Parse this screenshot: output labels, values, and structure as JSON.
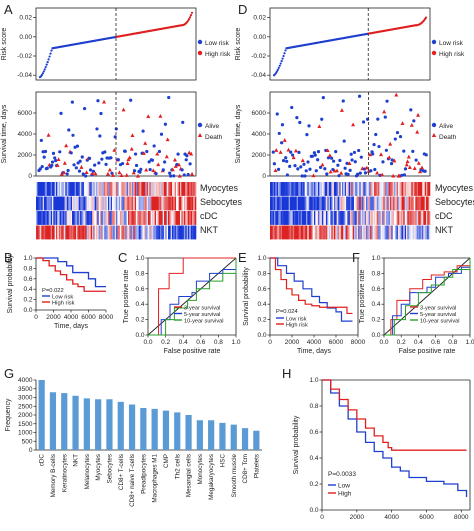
{
  "figure": {
    "panel_labels": [
      "A",
      "D",
      "B",
      "C",
      "E",
      "F",
      "G",
      "H"
    ],
    "heatmap_rows": [
      "Myocytes",
      "Sebocytes",
      "cDC",
      "NKT"
    ],
    "colors": {
      "low": "#1f3fcf",
      "high": "#e02020",
      "green": "#2aa02a",
      "gray": "#888888"
    }
  },
  "chart_data": [
    {
      "id": "A-risk",
      "type": "scatter",
      "panel": "A",
      "ylabel": "Risk score",
      "yticks": [
        "0.02",
        "0.00",
        "-0.02",
        "-0.04"
      ],
      "ylim": [
        -0.045,
        0.03
      ],
      "legend": [
        {
          "name": "Low risk",
          "color": "#1f3fcf"
        },
        {
          "name": "High risk",
          "color": "#e02020"
        }
      ],
      "cutoff_fraction": 0.5,
      "min": -0.042,
      "max": 0.025
    },
    {
      "id": "A-surv",
      "type": "scatter",
      "panel": "A",
      "ylabel": "Survival time, days",
      "yticks": [
        "6000",
        "4000",
        "2000",
        "0"
      ],
      "ylim": [
        0,
        8000
      ],
      "legend": [
        {
          "name": "Alive",
          "color": "#1f3fcf",
          "marker": "circle"
        },
        {
          "name": "Death",
          "color": "#e02020",
          "marker": "triangle"
        }
      ]
    },
    {
      "id": "D-risk",
      "type": "scatter",
      "panel": "D",
      "ylabel": "Risk score",
      "yticks": [
        "0.02",
        "0.00",
        "-0.02",
        "-0.04"
      ],
      "ylim": [
        -0.045,
        0.03
      ],
      "legend": [
        {
          "name": "Low risk",
          "color": "#1f3fcf"
        },
        {
          "name": "High risk",
          "color": "#e02020"
        }
      ],
      "cutoff_fraction": 0.62,
      "min": -0.04,
      "max": 0.02
    },
    {
      "id": "D-surv",
      "type": "scatter",
      "panel": "D",
      "ylabel": "Survival time, days",
      "yticks": [
        "6000",
        "4000",
        "2000",
        "0"
      ],
      "ylim": [
        0,
        8000
      ],
      "legend": [
        {
          "name": "Alive",
          "color": "#1f3fcf",
          "marker": "circle"
        },
        {
          "name": "Death",
          "color": "#e02020",
          "marker": "triangle"
        }
      ]
    },
    {
      "id": "B",
      "type": "line",
      "panel": "B",
      "xlabel": "Time, days",
      "ylabel": "Survival probability",
      "xticks": [
        "0",
        "2000",
        "4000",
        "6000",
        "8000"
      ],
      "yticks": [
        "1.0",
        "0.8",
        "0.6",
        "0.4",
        "0.2",
        "0.0"
      ],
      "xlim": [
        0,
        8000
      ],
      "ylim": [
        0,
        1
      ],
      "pvalue": "P=0.022",
      "series": [
        {
          "name": "Low risk",
          "color": "#1f3fcf",
          "x": [
            0,
            1500,
            2500,
            3500,
            4200,
            5000,
            6000,
            6800,
            8000
          ],
          "y": [
            1,
            1,
            0.93,
            0.85,
            0.72,
            0.72,
            0.6,
            0.45,
            0.45
          ]
        },
        {
          "name": "High risk",
          "color": "#e02020",
          "x": [
            0,
            800,
            1500,
            2200,
            2800,
            3500,
            4200,
            4800,
            5500,
            6500,
            8000
          ],
          "y": [
            1,
            0.95,
            0.85,
            0.75,
            0.68,
            0.58,
            0.5,
            0.45,
            0.36,
            0.36,
            0.36
          ]
        }
      ]
    },
    {
      "id": "C",
      "type": "line",
      "panel": "C",
      "xlabel": "False positive rate",
      "ylabel": "True positive rate",
      "xticks": [
        "0.0",
        "0.2",
        "0.4",
        "0.6",
        "0.8",
        "1.0"
      ],
      "yticks": [
        "1.0",
        "0.8",
        "0.6",
        "0.4",
        "0.2",
        "0.0"
      ],
      "xlim": [
        0,
        1
      ],
      "ylim": [
        0,
        1
      ],
      "series": [
        {
          "name": "3-year survival",
          "color": "#e02020",
          "x": [
            0,
            0.12,
            0.12,
            0.24,
            0.24,
            0.4,
            0.4,
            1
          ],
          "y": [
            0,
            0,
            0.6,
            0.6,
            0.8,
            0.8,
            1,
            1
          ]
        },
        {
          "name": "5-year survival",
          "color": "#1f3fcf",
          "x": [
            0,
            0.15,
            0.25,
            0.35,
            0.5,
            0.55,
            0.7,
            0.85,
            1
          ],
          "y": [
            0,
            0.2,
            0.4,
            0.5,
            0.55,
            0.7,
            0.8,
            0.85,
            1
          ]
        },
        {
          "name": "10-year survival",
          "color": "#2aa02a",
          "x": [
            0,
            0.2,
            0.3,
            0.45,
            0.55,
            0.7,
            0.85,
            1
          ],
          "y": [
            0,
            0.2,
            0.35,
            0.45,
            0.6,
            0.7,
            0.8,
            1
          ]
        }
      ]
    },
    {
      "id": "E",
      "type": "line",
      "panel": "E",
      "xlabel": "Time, days",
      "ylabel": "Survival probability",
      "xticks": [
        "0",
        "2000",
        "4000",
        "6000",
        "8000"
      ],
      "yticks": [
        "1.0",
        "0.8",
        "0.6",
        "0.4",
        "0.2",
        "0.0"
      ],
      "xlim": [
        0,
        8000
      ],
      "ylim": [
        0,
        1
      ],
      "pvalue": "P=0.024",
      "series": [
        {
          "name": "Low risk",
          "color": "#1f3fcf",
          "x": [
            0,
            700,
            1500,
            2200,
            3000,
            3800,
            4500,
            5200,
            6000,
            6500,
            7500
          ],
          "y": [
            1,
            0.9,
            0.8,
            0.7,
            0.6,
            0.5,
            0.42,
            0.35,
            0.3,
            0.18,
            0.18
          ]
        },
        {
          "name": "High risk",
          "color": "#e02020",
          "x": [
            0,
            500,
            1000,
            1500,
            2000,
            2600,
            3200,
            3800,
            4500,
            6000,
            7000,
            7500
          ],
          "y": [
            1,
            0.85,
            0.72,
            0.6,
            0.52,
            0.45,
            0.4,
            0.38,
            0.36,
            0.36,
            0.28,
            0.28
          ]
        }
      ]
    },
    {
      "id": "F",
      "type": "line",
      "panel": "F",
      "xlabel": "False positive rate",
      "ylabel": "True positive rate",
      "xticks": [
        "0.0",
        "0.2",
        "0.4",
        "0.6",
        "0.8",
        "1.0"
      ],
      "yticks": [
        "1.0",
        "0.8",
        "0.6",
        "0.4",
        "0.2",
        "0.0"
      ],
      "xlim": [
        0,
        1
      ],
      "ylim": [
        0,
        1
      ],
      "series": [
        {
          "name": "3-year survival",
          "color": "#e02020",
          "x": [
            0,
            0.08,
            0.15,
            0.3,
            0.45,
            0.55,
            0.7,
            0.85,
            1
          ],
          "y": [
            0,
            0.2,
            0.45,
            0.6,
            0.72,
            0.78,
            0.82,
            0.9,
            1
          ]
        },
        {
          "name": "5-year survival",
          "color": "#1f3fcf",
          "x": [
            0,
            0.1,
            0.2,
            0.3,
            0.5,
            0.6,
            0.75,
            0.9,
            1
          ],
          "y": [
            0,
            0.25,
            0.4,
            0.55,
            0.62,
            0.75,
            0.8,
            0.88,
            1
          ]
        },
        {
          "name": "10-year survival",
          "color": "#2aa02a",
          "x": [
            0,
            0.12,
            0.25,
            0.4,
            0.55,
            0.7,
            0.8,
            1
          ],
          "y": [
            0,
            0.2,
            0.38,
            0.55,
            0.65,
            0.75,
            0.85,
            1
          ]
        }
      ]
    },
    {
      "id": "G",
      "type": "bar",
      "panel": "G",
      "ylabel": "Frequency",
      "yticks": [
        "4000",
        "3500",
        "3000",
        "2500",
        "2000",
        "1500",
        "1000",
        "500",
        "0"
      ],
      "ylim": [
        0,
        4000
      ],
      "categories": [
        "cDC",
        "Memory B-cells",
        "Keratinocytes",
        "NKT",
        "Melanocytes",
        "Myocytes",
        "Sebocytes",
        "CD8+ T-cells",
        "CD8+ naive T-cells",
        "Preadipocytes",
        "Macrophages M1",
        "CMP",
        "Th2 cells",
        "Mesangial cells",
        "Monocytes",
        "Megakaryocytes",
        "HSC",
        "Smooth muscle",
        "CD8+ Tcm",
        "Platelets"
      ],
      "values": [
        4000,
        3300,
        3250,
        3100,
        2950,
        2900,
        2900,
        2750,
        2600,
        2400,
        2350,
        2250,
        2150,
        2000,
        1700,
        1700,
        1550,
        1450,
        1250,
        1100
      ],
      "color": "#5b9bd5"
    },
    {
      "id": "H",
      "type": "line",
      "panel": "H",
      "xlabel": "",
      "ylabel": "Survival probability",
      "xticks": [
        "0",
        "2000",
        "4000",
        "6000",
        "8000"
      ],
      "yticks": [
        "1.0",
        "0.8",
        "0.6",
        "0.4",
        "0.2",
        "0.0"
      ],
      "xlim": [
        0,
        8500
      ],
      "ylim": [
        0,
        1
      ],
      "pvalue": "P=0.0033",
      "series": [
        {
          "name": "Low",
          "color": "#1f3fcf",
          "x": [
            0,
            500,
            1000,
            1500,
            2000,
            2500,
            3000,
            3500,
            4000,
            4500,
            5000,
            6000,
            7000,
            7800,
            8300
          ],
          "y": [
            1,
            0.9,
            0.8,
            0.7,
            0.6,
            0.52,
            0.45,
            0.4,
            0.33,
            0.3,
            0.25,
            0.22,
            0.2,
            0.15,
            0.1
          ]
        },
        {
          "name": "High",
          "color": "#e02020",
          "x": [
            0,
            500,
            1000,
            1500,
            2000,
            2500,
            3000,
            3500,
            3800,
            4000,
            8300
          ],
          "y": [
            1,
            0.93,
            0.85,
            0.77,
            0.7,
            0.63,
            0.57,
            0.52,
            0.48,
            0.46,
            0.46
          ]
        }
      ]
    }
  ]
}
